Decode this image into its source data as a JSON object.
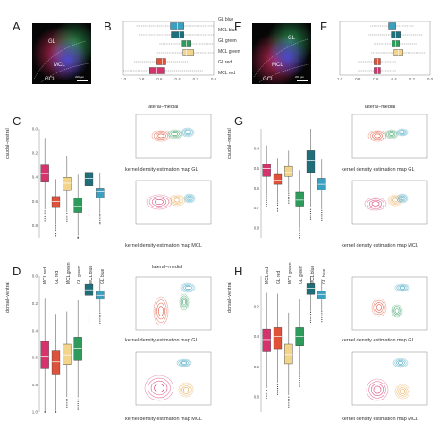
{
  "panels": {
    "A": {
      "label": "A",
      "regions": [
        "GL",
        "MCL",
        "GCL"
      ],
      "scalebar": "200 µm"
    },
    "B": {
      "label": "B",
      "axis_title": "lateral−medial",
      "ticks": [
        "1.0",
        "0.8",
        "0.6",
        "0.4",
        "0.2",
        "0.0"
      ],
      "categories": [
        "GL blue",
        "MCL blue",
        "GL green",
        "MCL green",
        "GL red",
        "MCL red"
      ]
    },
    "C": {
      "label": "C",
      "ylabel": "caudal−rostral",
      "yticks": [
        "0.0",
        "0.2",
        "0.4",
        "0.6",
        "0.8"
      ],
      "categories": [
        "MCL red",
        "GL red",
        "MCL green",
        "GL green",
        "MCL blue",
        "GL blue"
      ],
      "map_gl_title": "kernel density estimation map GL",
      "map_mcl_title": "kernel density estimation map MCL",
      "map_ticks_y": [
        "0.8",
        "0.6",
        "0.4",
        "0.2",
        "0.0"
      ],
      "map_ticks_x": [
        "0.0",
        "0.2",
        "0.4",
        "0.6",
        "0.8",
        "1.0"
      ]
    },
    "D": {
      "label": "D",
      "ylabel": "dorsal−ventral",
      "yticks": [
        "0.0",
        "0.2",
        "0.4",
        "0.6",
        "0.8",
        "1.0"
      ],
      "top_axis_title": "lateral−medial",
      "map_gl_title": "kernel density estimation map GL",
      "map_mcl_title": "kernel density estimation map MCL",
      "map_ticks_y": [
        "0.0",
        "0.2",
        "0.4",
        "0.6",
        "0.8",
        "1.0"
      ],
      "map_ticks_x": [
        "0.0",
        "0.2",
        "0.4",
        "0.6",
        "0.8",
        "1.0"
      ]
    },
    "E": {
      "label": "E",
      "regions": [
        "GL",
        "MCL",
        "GCL"
      ],
      "scalebar": "200 µm"
    },
    "F": {
      "label": "F",
      "axis_title": "lateral−medial",
      "ticks": [
        "1.0",
        "0.8",
        "0.6",
        "0.4",
        "0.2",
        "0.0"
      ]
    },
    "G": {
      "label": "G",
      "ylabel": "caudal−rostral",
      "yticks": [
        "0.4",
        "0.5",
        "0.6",
        "0.7",
        "0.8"
      ],
      "categories": [
        "MCL red",
        "GL red",
        "MCL green",
        "GL green",
        "MCL blue",
        "GL blue"
      ],
      "map_gl_title": "kernel density estimation map GL",
      "map_mcl_title": "kernel density estimation map MCL"
    },
    "H": {
      "label": "H",
      "ylabel": "dorsal−ventral",
      "yticks": [
        "0.2",
        "0.4",
        "0.6",
        "0.8"
      ],
      "map_gl_title": "kernel density estimation map GL",
      "map_mcl_title": "kernel density estimation map MCL",
      "map_ticks_y": [
        "0.0",
        "0.2",
        "0.4",
        "0.6",
        "0.8",
        "1.0"
      ]
    }
  },
  "colors": {
    "red": "#d6336c",
    "green": "#2e9a5b",
    "blue": "#2a8fa8",
    "mcl_red": "#d6336c",
    "gl_red": "#e0513a",
    "mcl_green": "#f2d48a",
    "gl_green": "#2e9a5b",
    "mcl_blue": "#1f6f7a",
    "gl_blue": "#3aa0c0"
  },
  "chart_data": [
    {
      "type": "box",
      "panel": "B",
      "orientation": "horizontal",
      "categories": [
        "GL blue",
        "MCL blue",
        "GL green",
        "MCL green",
        "GL red",
        "MCL red"
      ],
      "medians": [
        0.4,
        0.38,
        0.3,
        0.3,
        0.57,
        0.63
      ],
      "q1": [
        0.33,
        0.33,
        0.25,
        0.22,
        0.53,
        0.54
      ],
      "q3": [
        0.48,
        0.47,
        0.35,
        0.34,
        0.63,
        0.71
      ],
      "xlim": [
        1.0,
        0.0
      ]
    },
    {
      "type": "box",
      "panel": "C",
      "categories": [
        "MCL red",
        "GL red",
        "MCL green",
        "GL green",
        "MCL blue",
        "GL blue"
      ],
      "medians": [
        0.37,
        0.6,
        0.45,
        0.64,
        0.41,
        0.52
      ],
      "q1": [
        0.3,
        0.56,
        0.4,
        0.57,
        0.36,
        0.49
      ],
      "q3": [
        0.44,
        0.65,
        0.51,
        0.69,
        0.47,
        0.57
      ],
      "ylim": [
        0.0,
        0.9
      ]
    },
    {
      "type": "box",
      "panel": "D",
      "categories": [
        "MCL red",
        "GL red",
        "MCL green",
        "GL green",
        "MCL blue",
        "GL blue"
      ],
      "medians": [
        0.59,
        0.63,
        0.58,
        0.53,
        0.1,
        0.14
      ],
      "q1": [
        0.48,
        0.55,
        0.5,
        0.45,
        0.06,
        0.11
      ],
      "q3": [
        0.68,
        0.72,
        0.65,
        0.62,
        0.14,
        0.17
      ],
      "ylim": [
        0.0,
        1.0
      ]
    },
    {
      "type": "box",
      "panel": "F",
      "orientation": "horizontal",
      "categories": [
        "GL blue",
        "MCL blue",
        "GL green",
        "MCL green",
        "GL red",
        "MCL red"
      ],
      "medians": [
        0.42,
        0.38,
        0.38,
        0.35,
        0.58,
        0.58
      ],
      "q1": [
        0.38,
        0.33,
        0.34,
        0.3,
        0.55,
        0.55
      ],
      "q3": [
        0.46,
        0.43,
        0.42,
        0.4,
        0.62,
        0.62
      ],
      "xlim": [
        1.0,
        0.0
      ]
    },
    {
      "type": "box",
      "panel": "G",
      "categories": [
        "MCL red",
        "GL red",
        "MCL green",
        "GL green",
        "MCL blue",
        "GL blue"
      ],
      "medians": [
        0.5,
        0.56,
        0.52,
        0.66,
        0.46,
        0.58
      ],
      "q1": [
        0.48,
        0.53,
        0.49,
        0.62,
        0.41,
        0.55
      ],
      "q3": [
        0.54,
        0.58,
        0.54,
        0.69,
        0.52,
        0.61
      ],
      "ylim": [
        0.3,
        0.85
      ]
    },
    {
      "type": "box",
      "panel": "H",
      "categories": [
        "MCL red",
        "GL red",
        "MCL green",
        "GL green",
        "MCL blue",
        "GL blue"
      ],
      "medians": [
        0.42,
        0.4,
        0.52,
        0.4,
        0.08,
        0.12
      ],
      "q1": [
        0.35,
        0.34,
        0.45,
        0.34,
        0.05,
        0.1
      ],
      "q3": [
        0.5,
        0.48,
        0.58,
        0.46,
        0.12,
        0.15
      ],
      "ylim": [
        0.0,
        0.9
      ]
    }
  ]
}
